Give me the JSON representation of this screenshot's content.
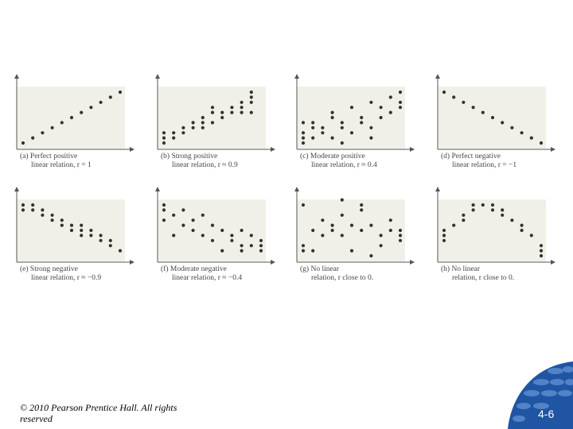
{
  "chart_data": [
    {
      "type": "scatter",
      "caption": {
        "line1": "(a) Perfect positive",
        "line2": "linear relation, r = 1"
      },
      "points": [
        [
          1,
          1
        ],
        [
          2,
          2
        ],
        [
          3,
          3
        ],
        [
          4,
          4
        ],
        [
          5,
          5
        ],
        [
          6,
          6
        ],
        [
          7,
          7
        ],
        [
          8,
          8
        ],
        [
          9,
          9
        ],
        [
          10,
          10
        ],
        [
          11,
          11
        ]
      ]
    },
    {
      "type": "scatter",
      "caption": {
        "line1": "(b) Strong positive",
        "line2": "linear relation, r ≈ 0.9"
      },
      "points": [
        [
          1,
          1
        ],
        [
          1,
          2
        ],
        [
          1,
          3
        ],
        [
          2,
          2
        ],
        [
          2,
          3
        ],
        [
          3,
          3
        ],
        [
          3,
          4
        ],
        [
          4,
          4
        ],
        [
          4,
          5
        ],
        [
          5,
          4
        ],
        [
          5,
          5
        ],
        [
          5,
          6
        ],
        [
          6,
          5
        ],
        [
          6,
          7
        ],
        [
          6,
          8
        ],
        [
          7,
          6
        ],
        [
          7,
          7
        ],
        [
          8,
          7
        ],
        [
          8,
          8
        ],
        [
          9,
          7
        ],
        [
          9,
          8
        ],
        [
          9,
          9
        ],
        [
          10,
          7
        ],
        [
          10,
          9
        ],
        [
          10,
          10
        ],
        [
          10,
          11
        ]
      ]
    },
    {
      "type": "scatter",
      "caption": {
        "line1": "(c) Moderate positive",
        "line2": "linear relation, r ≈ 0.4"
      },
      "points": [
        [
          1,
          1
        ],
        [
          1,
          2
        ],
        [
          1,
          3
        ],
        [
          1,
          5
        ],
        [
          2,
          2
        ],
        [
          2,
          4
        ],
        [
          2,
          5
        ],
        [
          3,
          3
        ],
        [
          3,
          4
        ],
        [
          4,
          2
        ],
        [
          4,
          6
        ],
        [
          4,
          7
        ],
        [
          5,
          1
        ],
        [
          5,
          4
        ],
        [
          5,
          5
        ],
        [
          6,
          3
        ],
        [
          6,
          8
        ],
        [
          7,
          5
        ],
        [
          7,
          6
        ],
        [
          8,
          2
        ],
        [
          8,
          4
        ],
        [
          8,
          9
        ],
        [
          9,
          6
        ],
        [
          9,
          8
        ],
        [
          10,
          7
        ],
        [
          10,
          10
        ],
        [
          11,
          8
        ],
        [
          11,
          9
        ],
        [
          11,
          11
        ]
      ]
    },
    {
      "type": "scatter",
      "caption": {
        "line1": "(d) Perfect negative",
        "line2": "linear relation, r = −1"
      },
      "points": [
        [
          1,
          11
        ],
        [
          2,
          10
        ],
        [
          3,
          9
        ],
        [
          4,
          8
        ],
        [
          5,
          7
        ],
        [
          6,
          6
        ],
        [
          7,
          5
        ],
        [
          8,
          4
        ],
        [
          9,
          3
        ],
        [
          10,
          2
        ],
        [
          11,
          1
        ]
      ]
    },
    {
      "type": "scatter",
      "caption": {
        "line1": "(e) Strong negative",
        "line2": "linear relation, r ≈ −0.9"
      },
      "points": [
        [
          1,
          11
        ],
        [
          1,
          10
        ],
        [
          2,
          10
        ],
        [
          2,
          11
        ],
        [
          3,
          9
        ],
        [
          3,
          10
        ],
        [
          4,
          9
        ],
        [
          4,
          8
        ],
        [
          5,
          7
        ],
        [
          5,
          8
        ],
        [
          6,
          6
        ],
        [
          6,
          7
        ],
        [
          7,
          5
        ],
        [
          7,
          6
        ],
        [
          7,
          7
        ],
        [
          8,
          5
        ],
        [
          8,
          6
        ],
        [
          9,
          4
        ],
        [
          9,
          5
        ],
        [
          10,
          3
        ],
        [
          10,
          4
        ],
        [
          11,
          2
        ]
      ]
    },
    {
      "type": "scatter",
      "caption": {
        "line1": "(f) Moderate negative",
        "line2": "linear relation, r ≈ −0.4"
      },
      "points": [
        [
          1,
          11
        ],
        [
          1,
          10
        ],
        [
          1,
          8
        ],
        [
          2,
          9
        ],
        [
          2,
          5
        ],
        [
          3,
          10
        ],
        [
          3,
          7
        ],
        [
          4,
          6
        ],
        [
          4,
          8
        ],
        [
          5,
          9
        ],
        [
          5,
          5
        ],
        [
          6,
          4
        ],
        [
          6,
          7
        ],
        [
          7,
          2
        ],
        [
          7,
          6
        ],
        [
          8,
          4
        ],
        [
          8,
          5
        ],
        [
          9,
          3
        ],
        [
          9,
          6
        ],
        [
          9,
          2
        ],
        [
          10,
          5
        ],
        [
          10,
          3
        ],
        [
          11,
          2
        ],
        [
          11,
          3
        ],
        [
          11,
          4
        ]
      ]
    },
    {
      "type": "scatter",
      "caption": {
        "line1": "(g) No linear",
        "line2": "relation, r close to 0."
      },
      "points": [
        [
          1,
          11
        ],
        [
          1,
          2
        ],
        [
          1,
          3
        ],
        [
          2,
          6
        ],
        [
          2,
          2
        ],
        [
          3,
          8
        ],
        [
          3,
          5
        ],
        [
          4,
          6
        ],
        [
          4,
          7
        ],
        [
          5,
          9
        ],
        [
          5,
          12
        ],
        [
          5,
          5
        ],
        [
          6,
          2
        ],
        [
          6,
          7
        ],
        [
          7,
          10
        ],
        [
          7,
          11
        ],
        [
          7,
          6
        ],
        [
          8,
          1
        ],
        [
          8,
          7
        ],
        [
          9,
          3
        ],
        [
          9,
          5
        ],
        [
          10,
          8
        ],
        [
          10,
          6
        ],
        [
          11,
          4
        ],
        [
          11,
          6
        ],
        [
          11,
          5
        ]
      ]
    },
    {
      "type": "scatter",
      "caption": {
        "line1": "(h) No linear",
        "line2": "relation, r close to 0."
      },
      "points": [
        [
          1,
          5
        ],
        [
          1,
          4
        ],
        [
          1,
          6
        ],
        [
          2,
          7
        ],
        [
          3,
          9
        ],
        [
          3,
          8
        ],
        [
          4,
          10
        ],
        [
          4,
          11
        ],
        [
          5,
          11
        ],
        [
          6,
          11
        ],
        [
          6,
          10
        ],
        [
          7,
          10
        ],
        [
          7,
          9
        ],
        [
          8,
          8
        ],
        [
          9,
          7
        ],
        [
          9,
          6
        ],
        [
          10,
          5
        ],
        [
          11,
          3
        ],
        [
          11,
          2
        ],
        [
          11,
          1
        ]
      ]
    }
  ],
  "footer": {
    "copyright": "© 2010 Pearson Prentice Hall. All rights reserved",
    "slide_number": "4-6"
  },
  "colors": {
    "plot_bg": "#f1f0e8",
    "dot": "#333333",
    "axis": "#555555",
    "corner_dark": "#1f55a3",
    "corner_light": "#5f8fcf"
  }
}
